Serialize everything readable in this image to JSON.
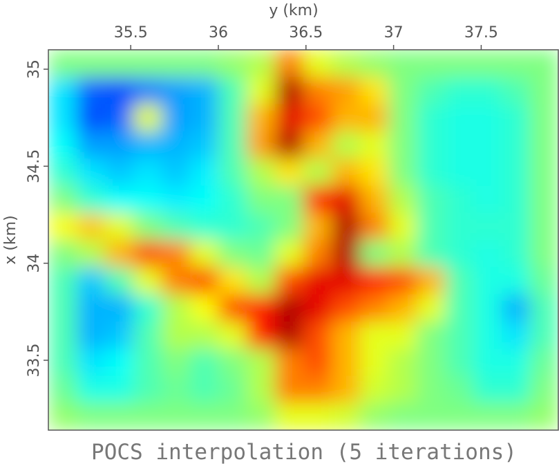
{
  "chart_data": {
    "type": "heatmap",
    "title": "POCS interpolation (5 iterations)",
    "xlabel": "y (km)",
    "ylabel": "x (km)",
    "colormap": "jet",
    "xlim": [
      35.03,
      37.94
    ],
    "xticks": [
      35.5,
      36,
      36.5,
      37,
      37.5
    ],
    "ylim": [
      35.1,
      33.14
    ],
    "yticks": [
      35,
      34.5,
      34,
      33.5
    ],
    "values": [
      [
        0.5,
        0.5,
        0.5,
        0.5,
        0.5,
        0.5,
        0.52,
        0.55,
        0.75,
        0.6,
        0.55,
        0.52,
        0.5,
        0.5,
        0.5,
        0.5,
        0.5,
        0.5
      ],
      [
        0.35,
        0.22,
        0.2,
        0.25,
        0.28,
        0.3,
        0.45,
        0.6,
        0.95,
        0.75,
        0.72,
        0.65,
        0.5,
        0.45,
        0.42,
        0.42,
        0.45,
        0.5
      ],
      [
        0.35,
        0.2,
        0.22,
        0.6,
        0.28,
        0.3,
        0.45,
        0.7,
        0.9,
        0.8,
        0.7,
        0.7,
        0.5,
        0.42,
        0.4,
        0.4,
        0.42,
        0.5
      ],
      [
        0.38,
        0.28,
        0.28,
        0.3,
        0.3,
        0.32,
        0.45,
        0.72,
        0.95,
        0.7,
        0.55,
        0.6,
        0.5,
        0.42,
        0.4,
        0.4,
        0.42,
        0.5
      ],
      [
        0.42,
        0.35,
        0.32,
        0.35,
        0.32,
        0.36,
        0.45,
        0.55,
        0.65,
        0.55,
        0.7,
        0.65,
        0.5,
        0.42,
        0.4,
        0.4,
        0.42,
        0.5
      ],
      [
        0.5,
        0.42,
        0.38,
        0.38,
        0.36,
        0.38,
        0.42,
        0.5,
        0.5,
        0.85,
        0.9,
        0.7,
        0.55,
        0.45,
        0.42,
        0.4,
        0.42,
        0.5
      ],
      [
        0.62,
        0.68,
        0.6,
        0.5,
        0.45,
        0.42,
        0.42,
        0.45,
        0.5,
        0.7,
        0.95,
        0.75,
        0.6,
        0.45,
        0.42,
        0.42,
        0.42,
        0.5
      ],
      [
        0.5,
        0.55,
        0.7,
        0.8,
        0.75,
        0.6,
        0.5,
        0.48,
        0.6,
        0.75,
        0.95,
        0.5,
        0.55,
        0.45,
        0.42,
        0.4,
        0.42,
        0.5
      ],
      [
        0.45,
        0.32,
        0.45,
        0.6,
        0.75,
        0.8,
        0.65,
        0.55,
        0.8,
        0.9,
        0.9,
        0.85,
        0.8,
        0.7,
        0.45,
        0.4,
        0.4,
        0.48
      ],
      [
        0.45,
        0.3,
        0.3,
        0.42,
        0.55,
        0.62,
        0.8,
        0.85,
        0.95,
        0.9,
        0.8,
        0.75,
        0.7,
        0.6,
        0.45,
        0.4,
        0.3,
        0.45
      ],
      [
        0.45,
        0.3,
        0.32,
        0.45,
        0.55,
        0.55,
        0.6,
        0.85,
        0.95,
        0.8,
        0.7,
        0.6,
        0.6,
        0.5,
        0.45,
        0.4,
        0.35,
        0.45
      ],
      [
        0.45,
        0.35,
        0.38,
        0.45,
        0.5,
        0.45,
        0.5,
        0.55,
        0.75,
        0.8,
        0.7,
        0.6,
        0.55,
        0.5,
        0.45,
        0.4,
        0.4,
        0.48
      ],
      [
        0.48,
        0.4,
        0.4,
        0.45,
        0.48,
        0.45,
        0.48,
        0.55,
        0.75,
        0.75,
        0.7,
        0.58,
        0.55,
        0.5,
        0.48,
        0.42,
        0.42,
        0.5
      ],
      [
        0.52,
        0.5,
        0.5,
        0.5,
        0.5,
        0.5,
        0.5,
        0.52,
        0.6,
        0.6,
        0.58,
        0.52,
        0.5,
        0.5,
        0.5,
        0.5,
        0.5,
        0.52
      ]
    ]
  }
}
